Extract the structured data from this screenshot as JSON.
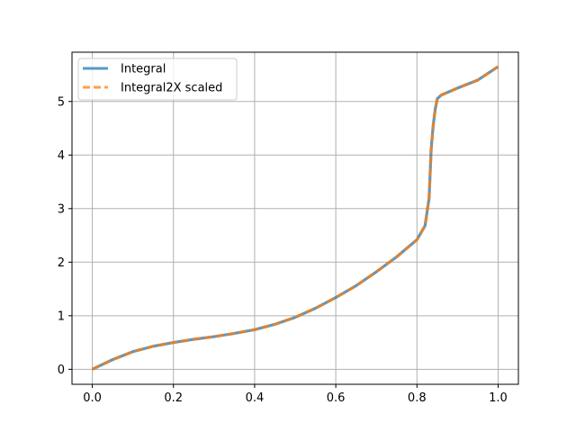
{
  "chart_data": {
    "type": "line",
    "title": "",
    "xlabel": "",
    "ylabel": "",
    "xlim": [
      -0.05,
      1.05
    ],
    "ylim": [
      -0.28,
      5.92
    ],
    "grid": true,
    "legend_position": "upper-left",
    "x_ticks": [
      0.0,
      0.2,
      0.4,
      0.6,
      0.8,
      1.0
    ],
    "x_tick_labels": [
      "0.0",
      "0.2",
      "0.4",
      "0.6",
      "0.8",
      "1.0"
    ],
    "y_ticks": [
      0,
      1,
      2,
      3,
      4,
      5
    ],
    "y_tick_labels": [
      "0",
      "1",
      "2",
      "3",
      "4",
      "5"
    ],
    "x": [
      0.0,
      0.05,
      0.1,
      0.15,
      0.2,
      0.25,
      0.3,
      0.35,
      0.4,
      0.45,
      0.5,
      0.55,
      0.6,
      0.65,
      0.7,
      0.75,
      0.8,
      0.82,
      0.83,
      0.835,
      0.84,
      0.845,
      0.85,
      0.86,
      0.9,
      0.95,
      1.0
    ],
    "series": [
      {
        "name": "Integral",
        "color": "#1f77b4",
        "style": "solid",
        "values": [
          0.0,
          0.18,
          0.33,
          0.43,
          0.5,
          0.56,
          0.61,
          0.67,
          0.74,
          0.84,
          0.97,
          1.14,
          1.34,
          1.56,
          1.82,
          2.1,
          2.42,
          2.68,
          3.2,
          4.1,
          4.55,
          4.85,
          5.05,
          5.12,
          5.25,
          5.4,
          5.65
        ]
      },
      {
        "name": "Integral2X scaled",
        "color": "#ff7f0e",
        "style": "dashed",
        "values": [
          0.0,
          0.18,
          0.33,
          0.43,
          0.5,
          0.56,
          0.61,
          0.67,
          0.74,
          0.84,
          0.97,
          1.14,
          1.34,
          1.56,
          1.82,
          2.1,
          2.42,
          2.68,
          3.2,
          4.1,
          4.55,
          4.85,
          5.05,
          5.12,
          5.25,
          5.4,
          5.65
        ]
      }
    ]
  }
}
